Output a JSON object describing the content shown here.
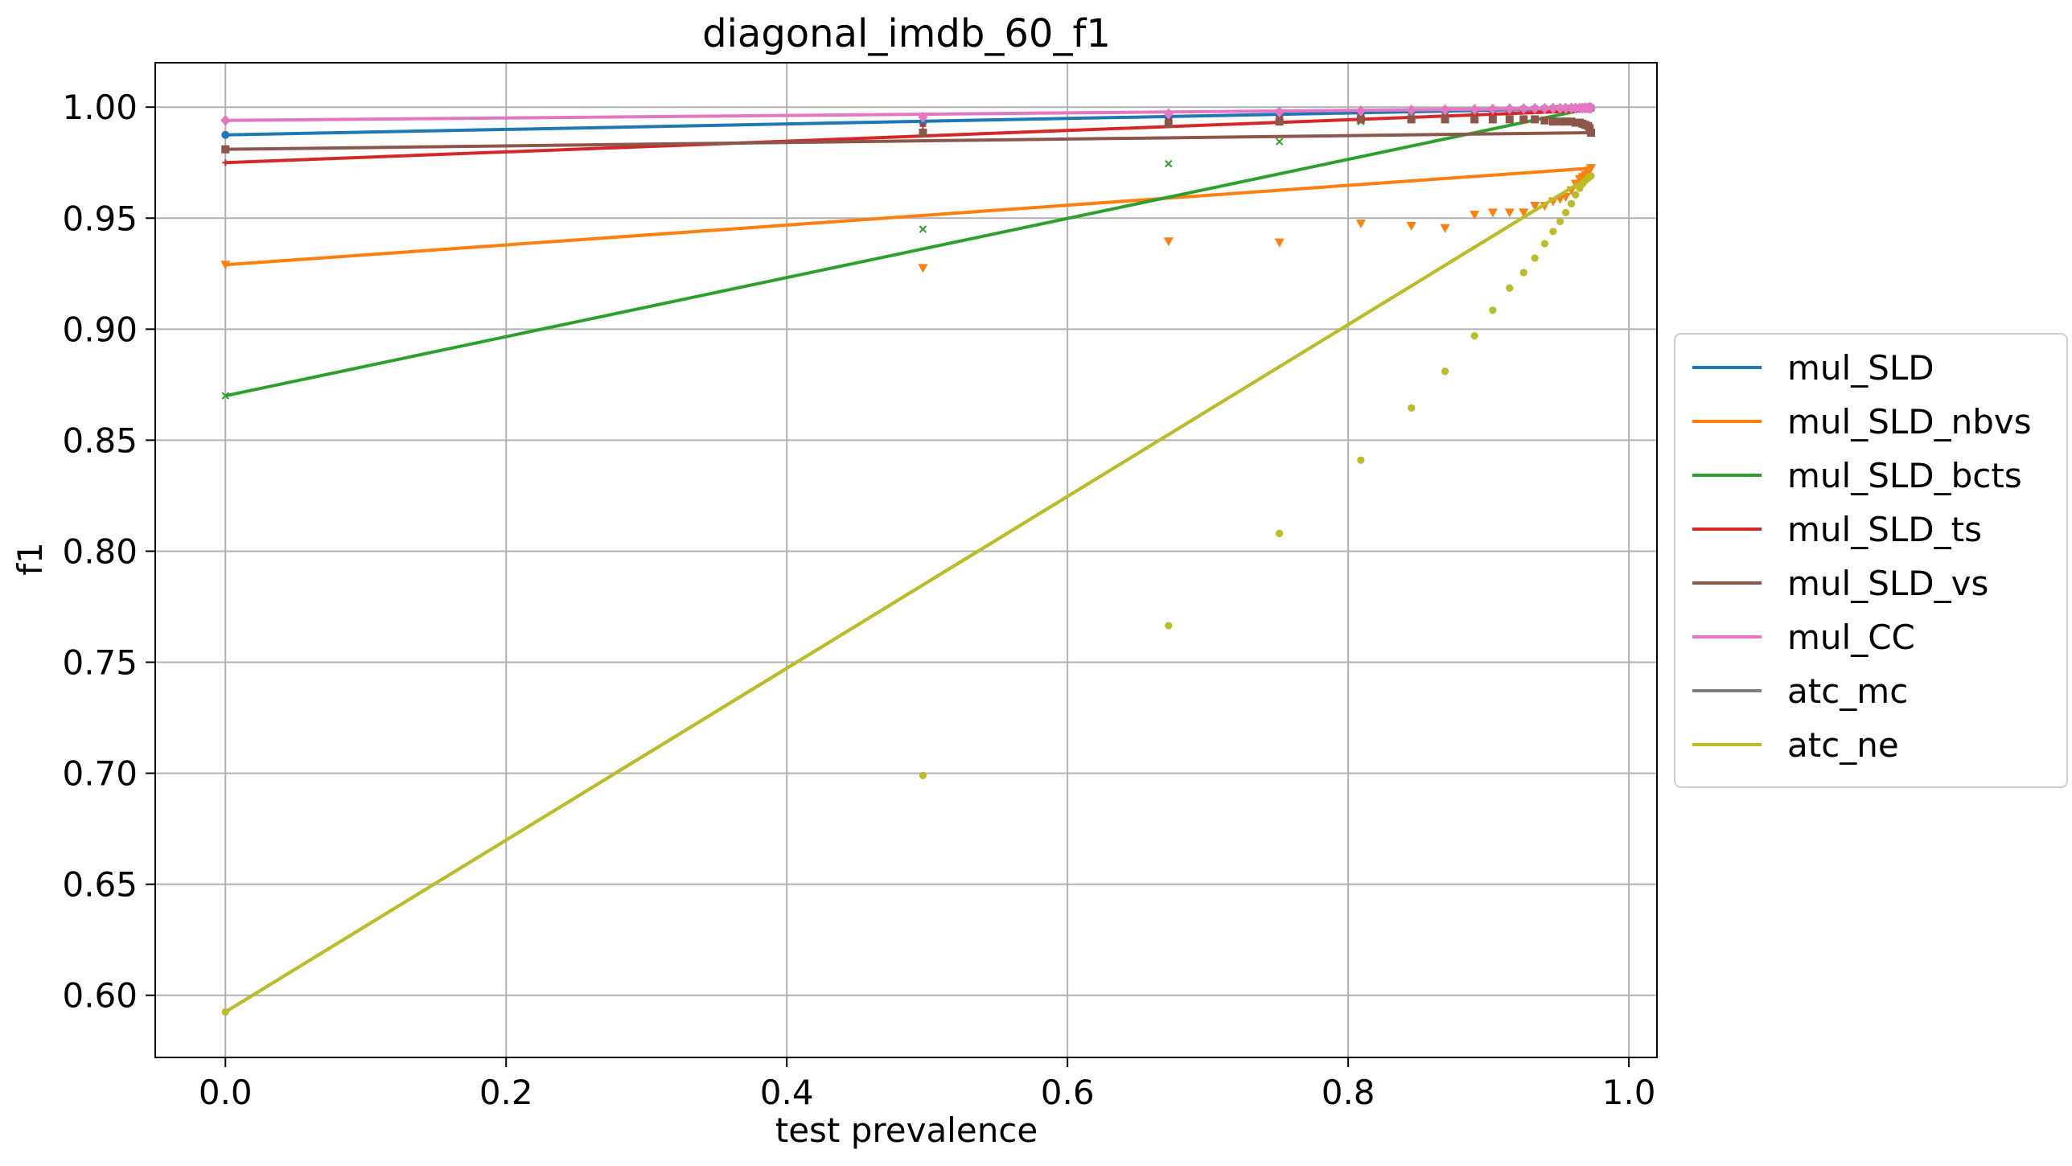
{
  "chart_data": {
    "type": "line",
    "title": "diagonal_imdb_60_f1",
    "xlabel": "test prevalence",
    "ylabel": "f1",
    "xlim": [
      -0.05,
      1.02
    ],
    "ylim": [
      0.572,
      1.02
    ],
    "x_ticks": [
      "0.0",
      "0.2",
      "0.4",
      "0.6",
      "0.8",
      "1.0"
    ],
    "y_ticks": [
      "0.60",
      "0.65",
      "0.70",
      "0.75",
      "0.80",
      "0.85",
      "0.90",
      "0.95",
      "1.00"
    ],
    "grid": true,
    "legend_position": "right, outside plot area",
    "x": [
      0.0,
      0.497,
      0.672,
      0.751,
      0.809,
      0.845,
      0.869,
      0.89,
      0.903,
      0.915,
      0.925,
      0.933,
      0.94,
      0.946,
      0.951,
      0.955,
      0.959,
      0.962,
      0.965,
      0.967,
      0.969,
      0.971,
      0.972,
      0.973
    ],
    "series": [
      {
        "name": "mul_SLD",
        "color": "#1f77b4",
        "marker": "circle",
        "fit": [
          0.9875,
          0.9995
        ],
        "values": [
          0.9875,
          0.9932,
          0.9953,
          0.9965,
          0.9973,
          0.9978,
          0.9981,
          0.9984,
          0.9986,
          0.9987,
          0.9988,
          0.9989,
          0.999,
          0.9991,
          0.9992,
          0.9992,
          0.9993,
          0.9993,
          0.9994,
          0.9994,
          0.9994,
          0.9995,
          0.9995,
          0.9995
        ]
      },
      {
        "name": "mul_SLD_nbvs",
        "color": "#ff7f0e",
        "marker": "triangle-down",
        "fit": [
          0.929,
          0.9725
        ],
        "values": [
          0.929,
          0.9275,
          0.9395,
          0.939,
          0.9475,
          0.9465,
          0.9455,
          0.9515,
          0.9525,
          0.9525,
          0.9525,
          0.9555,
          0.9555,
          0.9575,
          0.9585,
          0.9595,
          0.9625,
          0.9655,
          0.9675,
          0.9685,
          0.9695,
          0.9705,
          0.9715,
          0.9725
        ]
      },
      {
        "name": "mul_SLD_bcts",
        "color": "#2ca02c",
        "marker": "x",
        "fit": [
          0.87,
          0.9995
        ],
        "values": [
          0.87,
          0.945,
          0.9745,
          0.9845,
          0.9935,
          0.9965,
          0.9975,
          0.9982,
          0.9986,
          0.9988,
          0.999,
          0.9991,
          0.9992,
          0.9993,
          0.9994,
          0.9994,
          0.9995,
          0.9995,
          0.9995,
          0.9996,
          0.9996,
          0.9996,
          0.9996,
          0.9996
        ]
      },
      {
        "name": "mul_SLD_ts",
        "color": "#d62728",
        "marker": "plus",
        "fit": [
          0.975,
          0.9985
        ],
        "values": [
          0.975,
          0.9915,
          0.9945,
          0.996,
          0.997,
          0.9975,
          0.9978,
          0.998,
          0.9982,
          0.9983,
          0.9984,
          0.9985,
          0.9985,
          0.9986,
          0.9986,
          0.9987,
          0.9987,
          0.9987,
          0.9988,
          0.9988,
          0.9988,
          0.9988,
          0.9988,
          0.9988
        ]
      },
      {
        "name": "mul_SLD_vs",
        "color": "#8c564b",
        "marker": "square",
        "fit": [
          0.981,
          0.9885
        ],
        "values": [
          0.981,
          0.9885,
          0.9925,
          0.9935,
          0.9945,
          0.9945,
          0.9945,
          0.9945,
          0.9945,
          0.9945,
          0.9945,
          0.9945,
          0.994,
          0.9935,
          0.9935,
          0.9935,
          0.9935,
          0.993,
          0.993,
          0.9925,
          0.992,
          0.9915,
          0.9905,
          0.9885
        ]
      },
      {
        "name": "mul_CC",
        "color": "#e377c2",
        "marker": "diamond",
        "fit": [
          0.994,
          0.9995
        ],
        "values": [
          0.994,
          0.9955,
          0.997,
          0.9978,
          0.9983,
          0.9986,
          0.9988,
          0.999,
          0.9991,
          0.9992,
          0.9993,
          0.9994,
          0.9994,
          0.9995,
          0.9995,
          0.9995,
          0.9996,
          0.9996,
          0.9996,
          0.9996,
          0.9997,
          0.9997,
          0.9997,
          0.9997
        ]
      },
      {
        "name": "atc_mc",
        "color": "#7f7f7f",
        "marker": "dot",
        "fit": [
          0.5925,
          0.969
        ],
        "values": [
          0.5925,
          0.699,
          0.7665,
          0.808,
          0.841,
          0.8645,
          0.881,
          0.897,
          0.9085,
          0.9185,
          0.9255,
          0.932,
          0.9385,
          0.944,
          0.9485,
          0.9525,
          0.9565,
          0.9605,
          0.9635,
          0.9655,
          0.967,
          0.968,
          0.9688,
          0.969
        ]
      },
      {
        "name": "atc_ne",
        "color": "#bcbd22",
        "marker": "dot",
        "fit": [
          0.5925,
          0.969
        ],
        "values": [
          0.5925,
          0.699,
          0.7665,
          0.808,
          0.841,
          0.8645,
          0.881,
          0.897,
          0.9085,
          0.9185,
          0.9255,
          0.932,
          0.9385,
          0.944,
          0.9485,
          0.9525,
          0.9565,
          0.9605,
          0.9635,
          0.9655,
          0.967,
          0.968,
          0.9688,
          0.969
        ]
      }
    ]
  }
}
